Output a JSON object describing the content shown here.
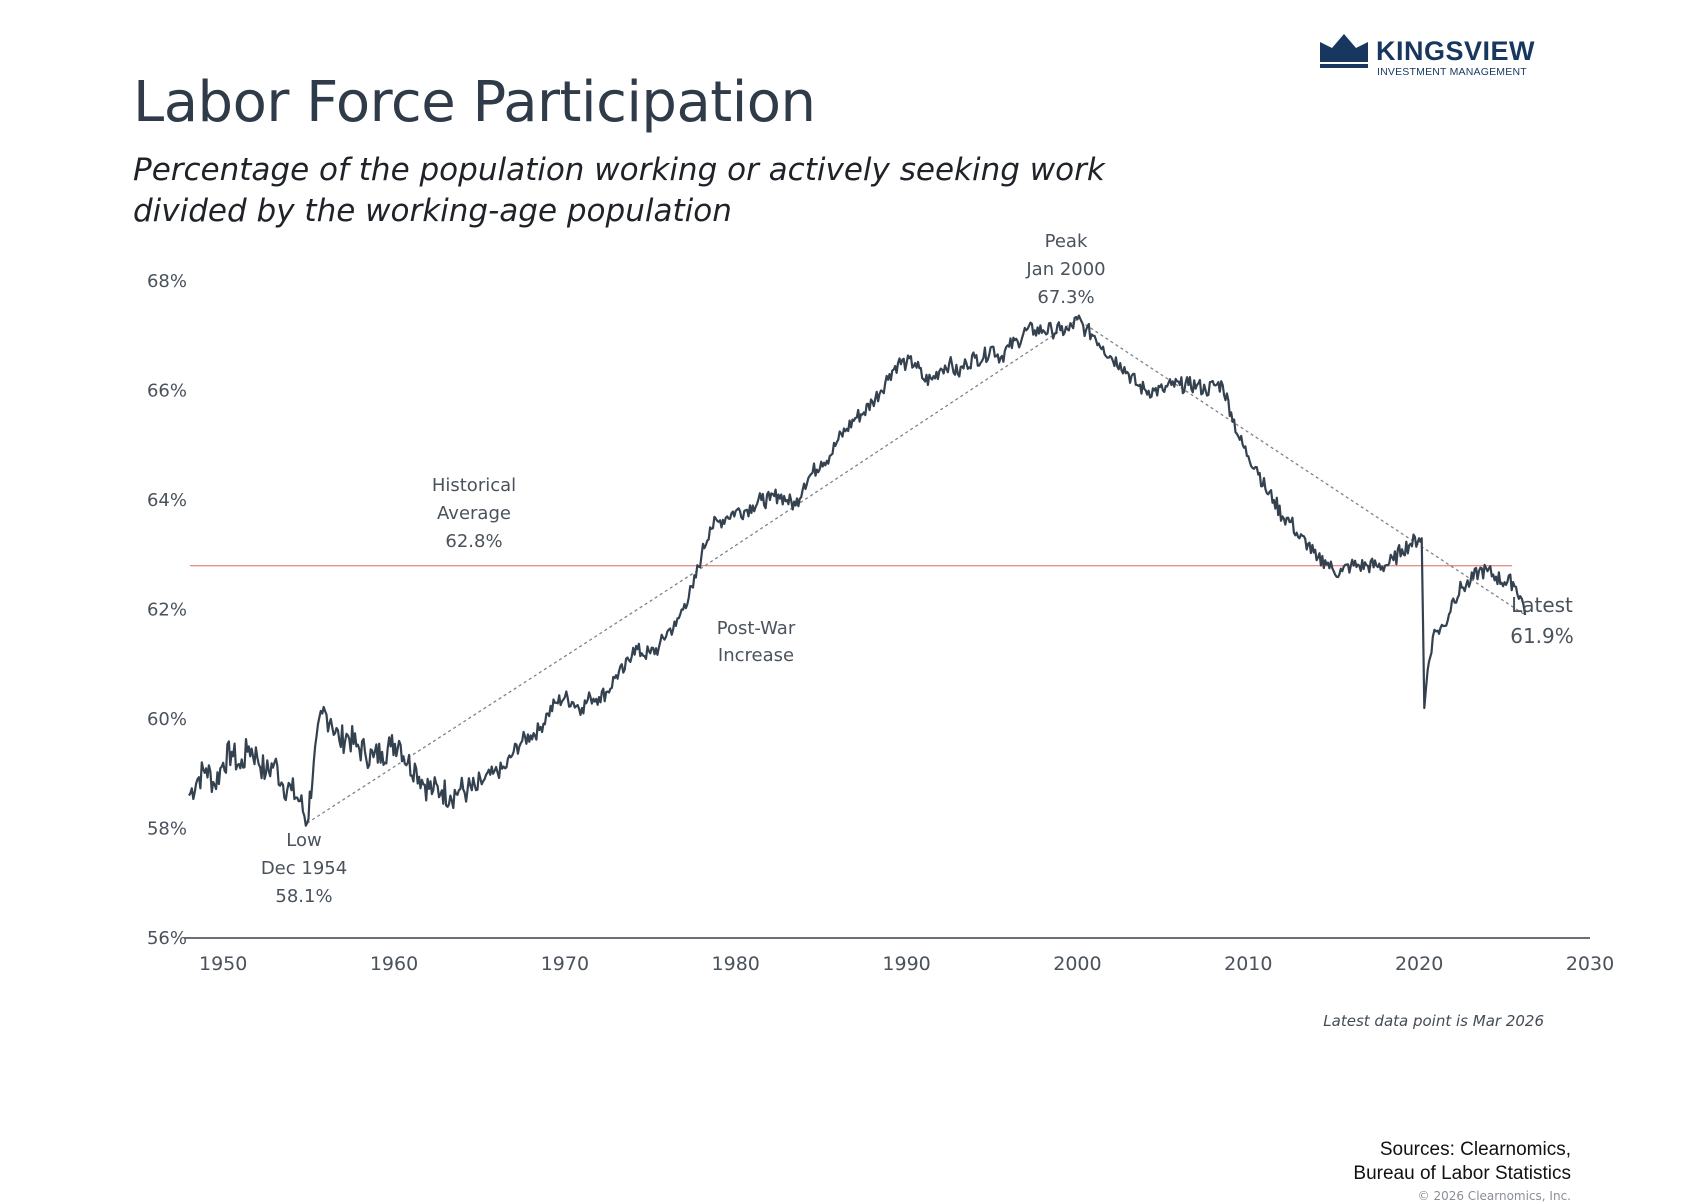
{
  "header": {
    "title": "Labor Force Participation",
    "subtitle_line1": "Percentage of the population working or actively seeking work",
    "subtitle_line2": "divided by the working-age population"
  },
  "logo": {
    "name": "KINGSVIEW",
    "tagline": "INVESTMENT MANAGEMENT",
    "icon": "crown-logo-icon",
    "color": "#17375e"
  },
  "footer": {
    "note": "Latest data point is Mar 2026",
    "sources_line1": "Sources: Clearnomics,",
    "sources_line2": "Bureau of Labor Statistics",
    "copyright": "© 2026 Clearnomics, Inc."
  },
  "chart_data": {
    "type": "line",
    "title": "",
    "xlabel": "",
    "ylabel": "",
    "xlim": [
      1948,
      2030
    ],
    "ylim": [
      56,
      68
    ],
    "x_ticks": [
      "1950",
      "1960",
      "1970",
      "1980",
      "1990",
      "2000",
      "2010",
      "2020",
      "2030"
    ],
    "y_ticks": [
      "56%",
      "58%",
      "60%",
      "62%",
      "64%",
      "66%",
      "68%"
    ],
    "grid": false,
    "line_color": "#34414f",
    "series": [
      {
        "x": [
          1948.0,
          1948.5,
          1949.0,
          1949.5,
          1950.0,
          1950.5,
          1951.0,
          1951.5,
          1952.0,
          1952.5,
          1953.0,
          1953.5,
          1954.0,
          1954.5,
          1954.92,
          1955.3,
          1955.8,
          1956.3,
          1956.8,
          1957.3,
          1957.8,
          1958.3,
          1958.8,
          1959.3,
          1959.8,
          1960.3,
          1960.8,
          1961.3,
          1961.8,
          1962.3,
          1962.8,
          1963.3,
          1963.8,
          1964.3,
          1964.8,
          1965.3,
          1965.8,
          1966.5,
          1967.0,
          1967.5,
          1968.0,
          1968.5,
          1969.0,
          1969.5,
          1970.0,
          1970.5,
          1971.0,
          1971.5,
          1972.0,
          1972.5,
          1973.0,
          1973.5,
          1974.0,
          1974.5,
          1975.0,
          1975.5,
          1976.0,
          1976.5,
          1977.0,
          1977.5,
          1978.0,
          1978.5,
          1979.0,
          1979.5,
          1980.0,
          1980.5,
          1981.0,
          1981.5,
          1982.0,
          1982.5,
          1983.0,
          1983.5,
          1984.0,
          1984.5,
          1985.0,
          1985.5,
          1986.0,
          1986.5,
          1987.0,
          1987.5,
          1988.0,
          1988.5,
          1989.0,
          1989.5,
          1990.0,
          1990.5,
          1991.0,
          1991.5,
          1992.0,
          1992.5,
          1993.0,
          1993.5,
          1994.0,
          1994.5,
          1995.0,
          1995.5,
          1996.0,
          1996.5,
          1997.0,
          1997.5,
          1998.0,
          1998.5,
          1999.0,
          1999.5,
          2000.0,
          2000.5,
          2001.0,
          2001.5,
          2002.0,
          2002.5,
          2003.0,
          2003.5,
          2004.0,
          2004.5,
          2005.0,
          2005.5,
          2006.0,
          2006.5,
          2007.0,
          2007.5,
          2008.0,
          2008.5,
          2009.0,
          2009.5,
          2010.0,
          2010.5,
          2011.0,
          2011.5,
          2012.0,
          2012.5,
          2013.0,
          2013.5,
          2014.0,
          2014.5,
          2015.0,
          2015.5,
          2016.0,
          2016.5,
          2017.0,
          2017.5,
          2018.0,
          2018.5,
          2019.0,
          2019.5,
          2020.0,
          2020.15,
          2020.3,
          2020.5,
          2020.8,
          2021.0,
          2021.5,
          2022.0,
          2022.5,
          2023.0,
          2023.5,
          2024.0,
          2024.5,
          2025.0,
          2025.5,
          2026.0,
          2026.2
        ],
        "y": [
          58.6,
          58.9,
          59.1,
          58.8,
          59.2,
          59.4,
          59.1,
          59.5,
          59.3,
          59.0,
          59.2,
          58.8,
          58.7,
          58.5,
          58.1,
          59.2,
          60.1,
          60.0,
          59.6,
          59.7,
          59.5,
          59.4,
          59.3,
          59.4,
          59.5,
          59.6,
          59.2,
          59.1,
          58.8,
          58.7,
          58.7,
          58.6,
          58.7,
          58.7,
          58.7,
          58.9,
          59.0,
          59.1,
          59.4,
          59.6,
          59.7,
          59.8,
          60.1,
          60.3,
          60.4,
          60.3,
          60.2,
          60.4,
          60.4,
          60.5,
          60.8,
          60.9,
          61.3,
          61.2,
          61.2,
          61.3,
          61.6,
          61.7,
          62.1,
          62.4,
          63.0,
          63.5,
          63.6,
          63.7,
          63.8,
          63.8,
          63.9,
          64.0,
          64.0,
          64.1,
          64.0,
          63.9,
          64.3,
          64.5,
          64.7,
          64.8,
          65.1,
          65.3,
          65.5,
          65.6,
          65.8,
          66.0,
          66.3,
          66.5,
          66.5,
          66.5,
          66.2,
          66.2,
          66.4,
          66.5,
          66.3,
          66.5,
          66.6,
          66.6,
          66.8,
          66.6,
          66.8,
          66.9,
          67.1,
          67.1,
          67.1,
          67.1,
          67.1,
          67.1,
          67.3,
          67.1,
          67.0,
          66.8,
          66.6,
          66.5,
          66.3,
          66.1,
          66.0,
          66.0,
          66.0,
          66.1,
          66.1,
          66.1,
          66.1,
          66.0,
          66.1,
          66.1,
          65.6,
          65.1,
          64.8,
          64.6,
          64.2,
          64.0,
          63.7,
          63.6,
          63.3,
          63.2,
          62.9,
          62.9,
          62.7,
          62.7,
          62.8,
          62.8,
          62.8,
          62.8,
          62.8,
          62.9,
          63.1,
          63.2,
          63.3,
          63.3,
          60.2,
          60.9,
          61.5,
          61.6,
          61.7,
          62.2,
          62.4,
          62.5,
          62.7,
          62.7,
          62.6,
          62.5,
          62.5,
          62.2,
          61.9
        ]
      }
    ],
    "reference_line": {
      "value": 62.8,
      "color": "#e6918c"
    },
    "trend_points": [
      {
        "x": 1954.92,
        "y": 58.1
      },
      {
        "x": 1978.2,
        "y": 62.8
      },
      {
        "x": 2000.0,
        "y": 67.3
      },
      {
        "x": 2026.2,
        "y": 61.9
      }
    ],
    "annotations": {
      "average": {
        "lines": [
          "Historical",
          "Average",
          "62.8%"
        ]
      },
      "post_war": {
        "lines": [
          "Post-War",
          "Increase"
        ]
      },
      "peak": {
        "lines": [
          "Peak",
          "Jan 2000",
          "67.3%"
        ]
      },
      "low": {
        "lines": [
          "Low",
          "Dec 1954",
          "58.1%"
        ]
      },
      "latest": {
        "lines": [
          "Latest",
          "61.9%"
        ]
      }
    }
  }
}
